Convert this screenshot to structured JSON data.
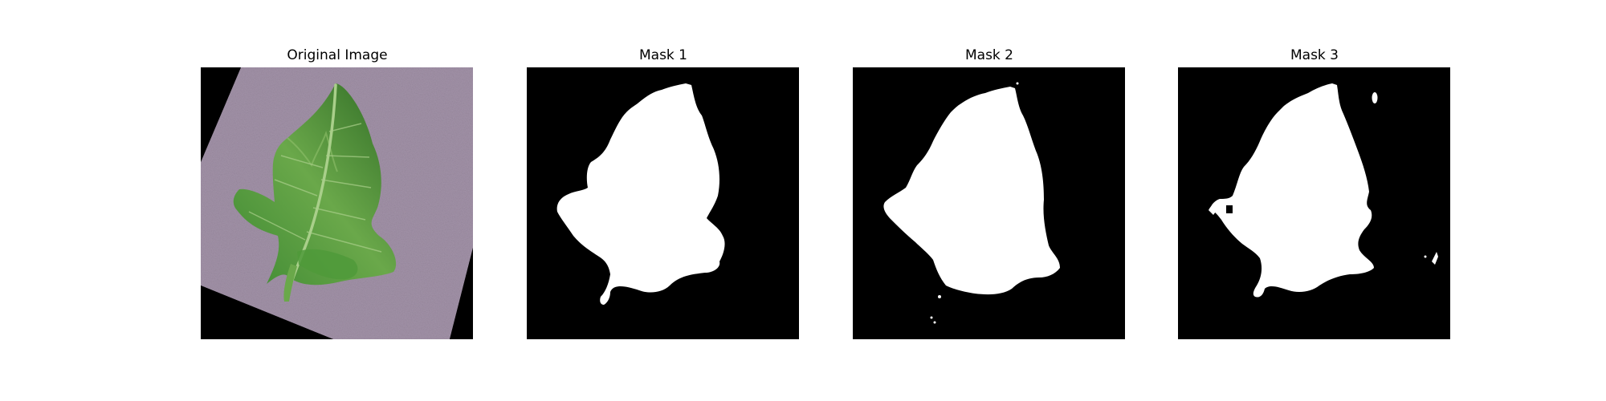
{
  "panels": [
    {
      "title": "Original Image",
      "content": "tomato-leaf-photo"
    },
    {
      "title": "Mask 1",
      "content": "binary-mask"
    },
    {
      "title": "Mask 2",
      "content": "binary-mask"
    },
    {
      "title": "Mask 3",
      "content": "binary-mask"
    }
  ],
  "colors": {
    "background": "#ffffff",
    "mask_background": "#000000",
    "mask_foreground": "#ffffff",
    "leaf_green": "#4f9a3a",
    "leaf_dark": "#2f6b25",
    "mat_purple": "#a292a8"
  }
}
